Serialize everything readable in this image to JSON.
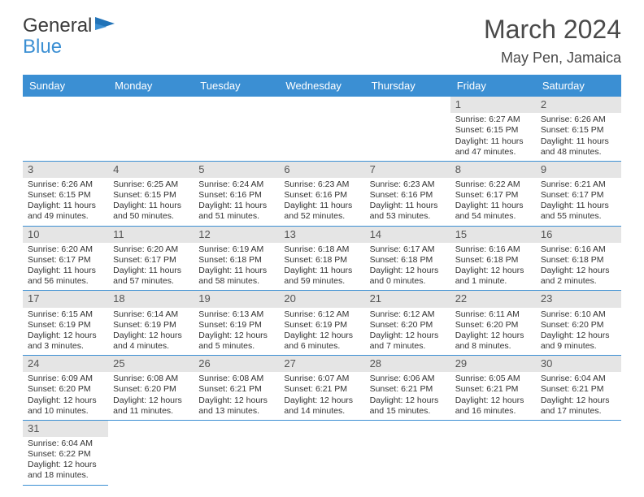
{
  "logo": {
    "text1": "General",
    "text2": "Blue"
  },
  "title": "March 2024",
  "location": "May Pen, Jamaica",
  "colors": {
    "headerBlue": "#3b8fd3",
    "dayBarGray": "#e5e5e5",
    "white": "#ffffff",
    "textGray": "#4a4a4a"
  },
  "dayNames": [
    "Sunday",
    "Monday",
    "Tuesday",
    "Wednesday",
    "Thursday",
    "Friday",
    "Saturday"
  ],
  "sunriseLabel": "Sunrise: ",
  "sunsetLabel": "Sunset: ",
  "daylightLabel": "Daylight: ",
  "days": {
    "1": {
      "num": "1",
      "sunrise": "6:27 AM",
      "sunset": "6:15 PM",
      "daylight": "11 hours and 47 minutes."
    },
    "2": {
      "num": "2",
      "sunrise": "6:26 AM",
      "sunset": "6:15 PM",
      "daylight": "11 hours and 48 minutes."
    },
    "3": {
      "num": "3",
      "sunrise": "6:26 AM",
      "sunset": "6:15 PM",
      "daylight": "11 hours and 49 minutes."
    },
    "4": {
      "num": "4",
      "sunrise": "6:25 AM",
      "sunset": "6:15 PM",
      "daylight": "11 hours and 50 minutes."
    },
    "5": {
      "num": "5",
      "sunrise": "6:24 AM",
      "sunset": "6:16 PM",
      "daylight": "11 hours and 51 minutes."
    },
    "6": {
      "num": "6",
      "sunrise": "6:23 AM",
      "sunset": "6:16 PM",
      "daylight": "11 hours and 52 minutes."
    },
    "7": {
      "num": "7",
      "sunrise": "6:23 AM",
      "sunset": "6:16 PM",
      "daylight": "11 hours and 53 minutes."
    },
    "8": {
      "num": "8",
      "sunrise": "6:22 AM",
      "sunset": "6:17 PM",
      "daylight": "11 hours and 54 minutes."
    },
    "9": {
      "num": "9",
      "sunrise": "6:21 AM",
      "sunset": "6:17 PM",
      "daylight": "11 hours and 55 minutes."
    },
    "10": {
      "num": "10",
      "sunrise": "6:20 AM",
      "sunset": "6:17 PM",
      "daylight": "11 hours and 56 minutes."
    },
    "11": {
      "num": "11",
      "sunrise": "6:20 AM",
      "sunset": "6:17 PM",
      "daylight": "11 hours and 57 minutes."
    },
    "12": {
      "num": "12",
      "sunrise": "6:19 AM",
      "sunset": "6:18 PM",
      "daylight": "11 hours and 58 minutes."
    },
    "13": {
      "num": "13",
      "sunrise": "6:18 AM",
      "sunset": "6:18 PM",
      "daylight": "11 hours and 59 minutes."
    },
    "14": {
      "num": "14",
      "sunrise": "6:17 AM",
      "sunset": "6:18 PM",
      "daylight": "12 hours and 0 minutes."
    },
    "15": {
      "num": "15",
      "sunrise": "6:16 AM",
      "sunset": "6:18 PM",
      "daylight": "12 hours and 1 minute."
    },
    "16": {
      "num": "16",
      "sunrise": "6:16 AM",
      "sunset": "6:18 PM",
      "daylight": "12 hours and 2 minutes."
    },
    "17": {
      "num": "17",
      "sunrise": "6:15 AM",
      "sunset": "6:19 PM",
      "daylight": "12 hours and 3 minutes."
    },
    "18": {
      "num": "18",
      "sunrise": "6:14 AM",
      "sunset": "6:19 PM",
      "daylight": "12 hours and 4 minutes."
    },
    "19": {
      "num": "19",
      "sunrise": "6:13 AM",
      "sunset": "6:19 PM",
      "daylight": "12 hours and 5 minutes."
    },
    "20": {
      "num": "20",
      "sunrise": "6:12 AM",
      "sunset": "6:19 PM",
      "daylight": "12 hours and 6 minutes."
    },
    "21": {
      "num": "21",
      "sunrise": "6:12 AM",
      "sunset": "6:20 PM",
      "daylight": "12 hours and 7 minutes."
    },
    "22": {
      "num": "22",
      "sunrise": "6:11 AM",
      "sunset": "6:20 PM",
      "daylight": "12 hours and 8 minutes."
    },
    "23": {
      "num": "23",
      "sunrise": "6:10 AM",
      "sunset": "6:20 PM",
      "daylight": "12 hours and 9 minutes."
    },
    "24": {
      "num": "24",
      "sunrise": "6:09 AM",
      "sunset": "6:20 PM",
      "daylight": "12 hours and 10 minutes."
    },
    "25": {
      "num": "25",
      "sunrise": "6:08 AM",
      "sunset": "6:20 PM",
      "daylight": "12 hours and 11 minutes."
    },
    "26": {
      "num": "26",
      "sunrise": "6:08 AM",
      "sunset": "6:21 PM",
      "daylight": "12 hours and 13 minutes."
    },
    "27": {
      "num": "27",
      "sunrise": "6:07 AM",
      "sunset": "6:21 PM",
      "daylight": "12 hours and 14 minutes."
    },
    "28": {
      "num": "28",
      "sunrise": "6:06 AM",
      "sunset": "6:21 PM",
      "daylight": "12 hours and 15 minutes."
    },
    "29": {
      "num": "29",
      "sunrise": "6:05 AM",
      "sunset": "6:21 PM",
      "daylight": "12 hours and 16 minutes."
    },
    "30": {
      "num": "30",
      "sunrise": "6:04 AM",
      "sunset": "6:21 PM",
      "daylight": "12 hours and 17 minutes."
    },
    "31": {
      "num": "31",
      "sunrise": "6:04 AM",
      "sunset": "6:22 PM",
      "daylight": "12 hours and 18 minutes."
    }
  },
  "grid": [
    [
      null,
      null,
      null,
      null,
      null,
      "1",
      "2"
    ],
    [
      "3",
      "4",
      "5",
      "6",
      "7",
      "8",
      "9"
    ],
    [
      "10",
      "11",
      "12",
      "13",
      "14",
      "15",
      "16"
    ],
    [
      "17",
      "18",
      "19",
      "20",
      "21",
      "22",
      "23"
    ],
    [
      "24",
      "25",
      "26",
      "27",
      "28",
      "29",
      "30"
    ],
    [
      "31",
      null,
      null,
      null,
      null,
      null,
      null
    ]
  ]
}
